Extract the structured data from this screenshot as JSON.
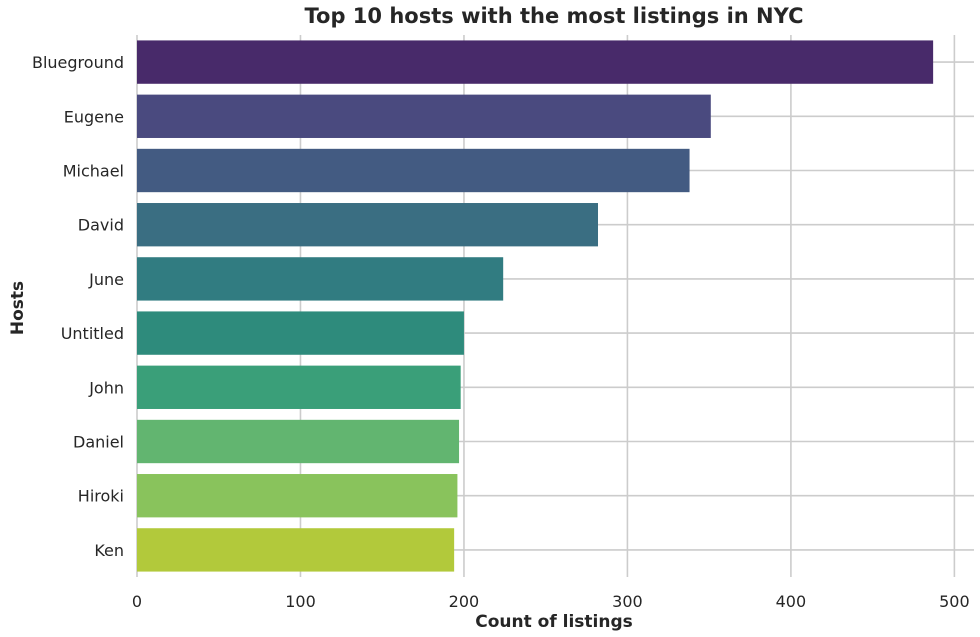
{
  "chart_data": {
    "type": "bar",
    "orientation": "horizontal",
    "title": "Top 10 hosts with the most listings in NYC",
    "xlabel": "Count of listings",
    "ylabel": "Hosts",
    "categories": [
      "Blueground",
      "Eugene",
      "Michael",
      "David",
      "June",
      "Untitled",
      "John",
      "Daniel",
      "Hiroki",
      "Ken"
    ],
    "values": [
      487,
      351,
      338,
      282,
      224,
      200,
      198,
      197,
      196,
      194
    ],
    "colors": [
      "#482a6a",
      "#4a4a7f",
      "#435b82",
      "#3a6e82",
      "#317c81",
      "#2e8b7c",
      "#3a9f79",
      "#62b570",
      "#89c35c",
      "#b2c93b"
    ],
    "xlim": [
      0,
      512
    ],
    "xticks": [
      0,
      100,
      200,
      300,
      400,
      500
    ],
    "grid": true,
    "legend": "none"
  }
}
